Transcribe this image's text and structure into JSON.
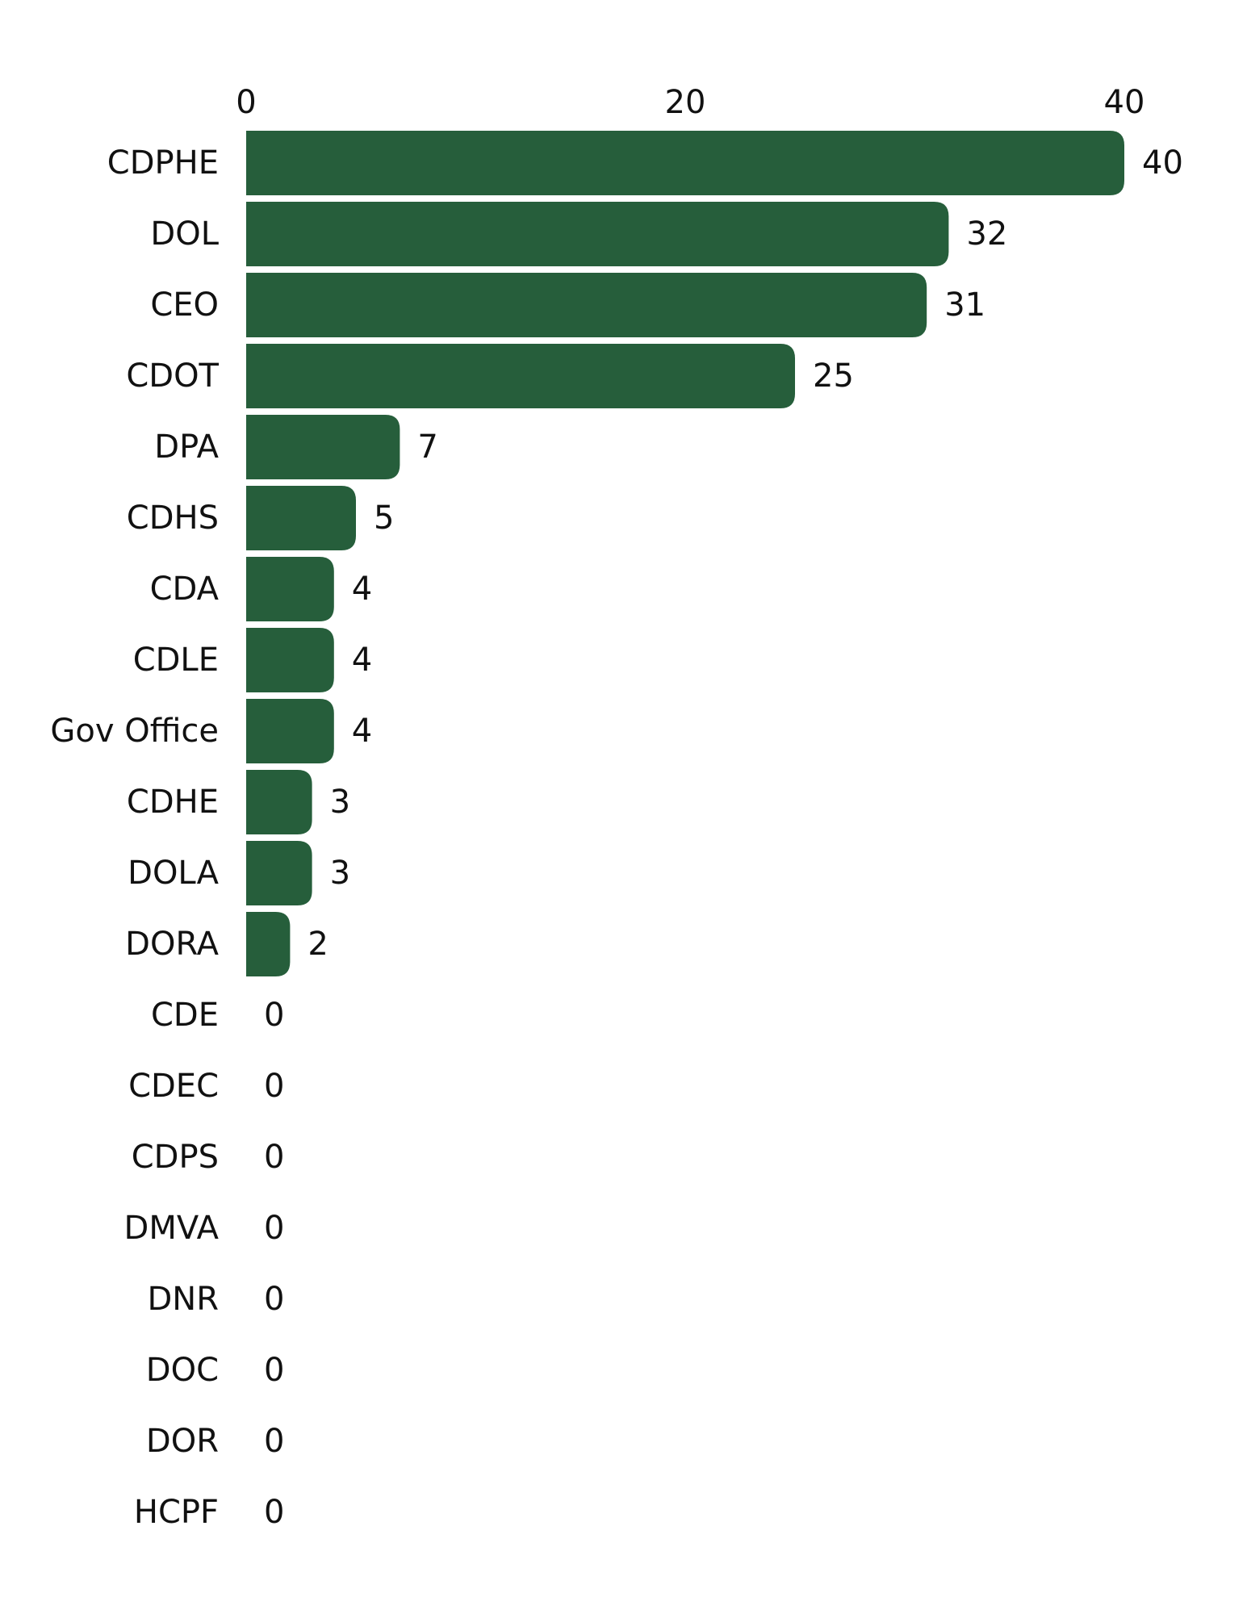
{
  "chart_data": {
    "type": "bar",
    "orientation": "horizontal",
    "title": "",
    "xlabel": "",
    "ylabel": "",
    "categories": [
      "CDPHE",
      "DOL",
      "CEO",
      "CDOT",
      "DPA",
      "CDHS",
      "CDA",
      "CDLE",
      "Gov Office",
      "CDHE",
      "DOLA",
      "DORA",
      "CDE",
      "CDEC",
      "CDPS",
      "DMVA",
      "DNR",
      "DOC",
      "DOR",
      "HCPF"
    ],
    "values": [
      40,
      32,
      31,
      25,
      7,
      5,
      4,
      4,
      4,
      3,
      3,
      2,
      0,
      0,
      0,
      0,
      0,
      0,
      0,
      0
    ],
    "xlim": [
      0,
      40
    ],
    "xticks": [
      0,
      20,
      40
    ],
    "axis_position": "top",
    "grid": false,
    "legend": "none",
    "bar_color": "#265e3b"
  }
}
